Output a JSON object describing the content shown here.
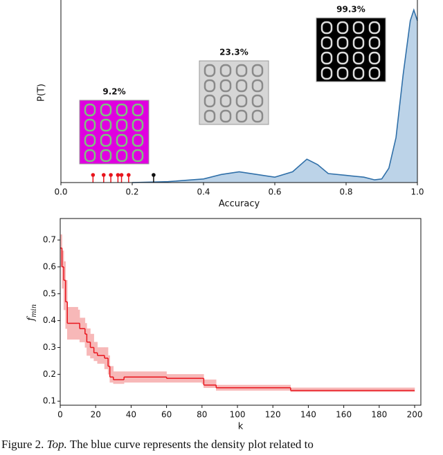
{
  "chart_data": [
    {
      "type": "density",
      "ylabel": "P(T)",
      "xlabel": "Accuracy",
      "color": "#2f6fa8",
      "fill": "#bcd3e8",
      "annotations": [
        "9.2%",
        "23.3%",
        "99.3%"
      ],
      "x": [
        0.2,
        0.3,
        0.4,
        0.45,
        0.5,
        0.55,
        0.6,
        0.65,
        0.69,
        0.72,
        0.75,
        0.8,
        0.85,
        0.88,
        0.9,
        0.92,
        0.94,
        0.96,
        0.98,
        0.99,
        1.0
      ],
      "values": [
        0.0,
        0.005,
        0.02,
        0.045,
        0.06,
        0.045,
        0.03,
        0.06,
        0.13,
        0.1,
        0.05,
        0.04,
        0.03,
        0.015,
        0.02,
        0.08,
        0.25,
        0.6,
        0.9,
        0.96,
        0.9
      ],
      "stems": [
        {
          "color": "#e8141c",
          "x": [
            0.09,
            0.12,
            0.14,
            0.16,
            0.17,
            0.19
          ]
        },
        {
          "color": "#111111",
          "x": [
            0.26
          ]
        }
      ],
      "xlim": [
        0,
        1
      ],
      "ylim": [
        0,
        1
      ],
      "xticks": [
        {
          "value": 0,
          "label": "0.0"
        },
        0.2,
        0.4,
        0.6,
        0.8,
        {
          "value": 1,
          "label": "1.0"
        }
      ]
    },
    {
      "type": "step",
      "xlabel": "k",
      "ylabel": "f",
      "ylabel_sub": "min",
      "color": "#e8141c",
      "band_color": "#f7b8b8",
      "x": [
        0,
        1,
        2,
        3,
        4,
        10,
        11,
        14,
        15,
        17,
        19,
        21,
        25,
        27,
        28,
        30,
        36,
        60,
        80,
        81,
        88,
        130,
        200
      ],
      "values": [
        0.67,
        0.6,
        0.55,
        0.47,
        0.39,
        0.39,
        0.37,
        0.35,
        0.32,
        0.3,
        0.28,
        0.27,
        0.26,
        0.23,
        0.19,
        0.18,
        0.19,
        0.185,
        0.185,
        0.16,
        0.15,
        0.14,
        0.14
      ],
      "lower": [
        0.6,
        0.52,
        0.44,
        0.37,
        0.33,
        0.33,
        0.32,
        0.3,
        0.27,
        0.26,
        0.25,
        0.24,
        0.22,
        0.2,
        0.17,
        0.165,
        0.17,
        0.17,
        0.165,
        0.15,
        0.14,
        0.135,
        0.135
      ],
      "upper": [
        0.72,
        0.66,
        0.62,
        0.55,
        0.45,
        0.44,
        0.41,
        0.39,
        0.37,
        0.35,
        0.32,
        0.3,
        0.3,
        0.27,
        0.23,
        0.21,
        0.21,
        0.2,
        0.2,
        0.18,
        0.16,
        0.15,
        0.15
      ],
      "xlim": [
        0,
        203.5
      ],
      "ylim": [
        0.085,
        0.78
      ],
      "xticks": [
        0,
        20,
        40,
        60,
        80,
        100,
        120,
        140,
        160,
        180,
        200
      ],
      "yticks": [
        0.1,
        0.2,
        0.3,
        0.4,
        0.5,
        0.6,
        0.7
      ]
    }
  ],
  "caption": {
    "label": "Figure 2.",
    "emph": "Top.",
    "text": "The blue curve represents the density plot related to"
  }
}
